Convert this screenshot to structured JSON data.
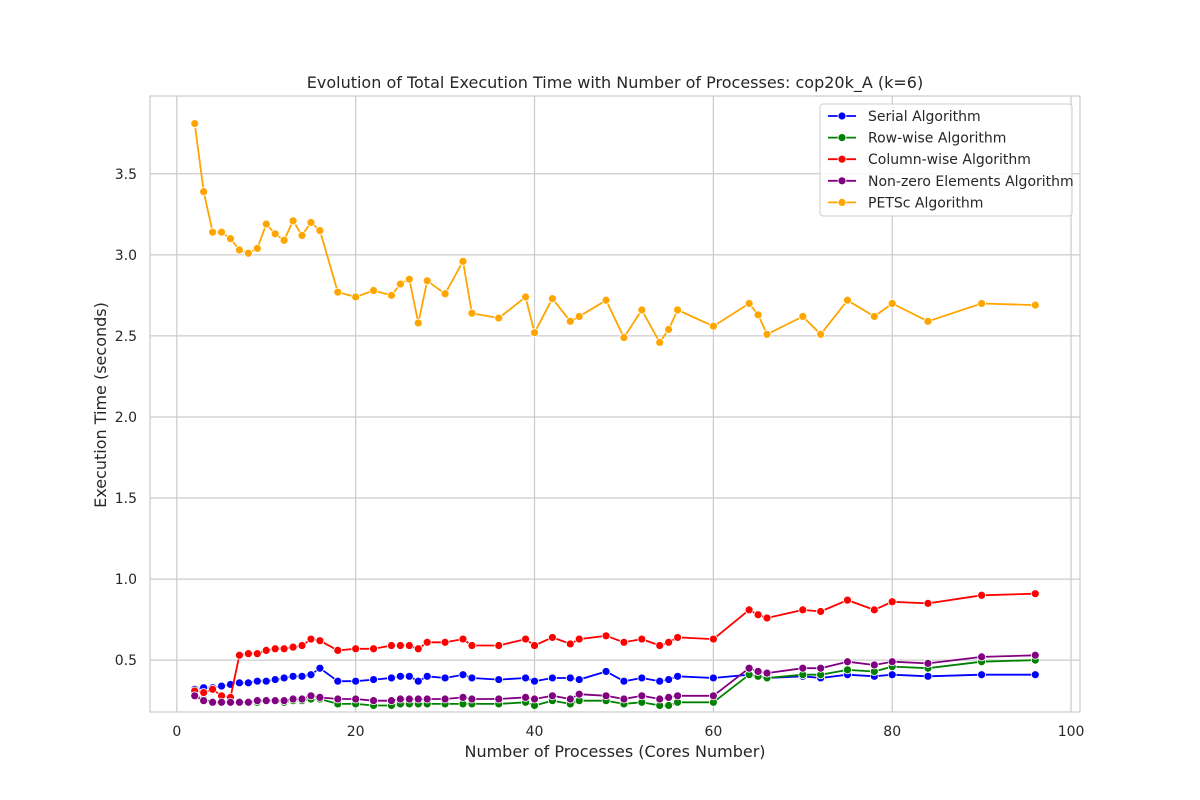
{
  "chart_data": {
    "type": "line",
    "title": "Evolution of Total Execution Time with Number of Processes: cop20k_A (k=6)",
    "xlabel": "Number of Processes (Cores Number)",
    "ylabel": "Execution Time (seconds)",
    "xlim": [
      -3,
      101
    ],
    "ylim": [
      0.18,
      3.98
    ],
    "xticks": [
      0,
      20,
      40,
      60,
      80,
      100
    ],
    "yticks": [
      0.5,
      1.0,
      1.5,
      2.0,
      2.5,
      3.0,
      3.5
    ],
    "ytick_labels": [
      "0.5",
      "1.0",
      "1.5",
      "2.0",
      "2.5",
      "3.0",
      "3.5"
    ],
    "grid": true,
    "legend_position": "top-right",
    "series": [
      {
        "name": "Serial Algorithm",
        "color": "#0000ff",
        "x": [
          2,
          3,
          4,
          5,
          6,
          7,
          8,
          9,
          10,
          11,
          12,
          13,
          14,
          15,
          16,
          18,
          20,
          22,
          24,
          25,
          26,
          27,
          28,
          30,
          32,
          33,
          36,
          39,
          40,
          42,
          44,
          45,
          48,
          50,
          52,
          54,
          55,
          56,
          60,
          64,
          65,
          66,
          70,
          72,
          75,
          78,
          80,
          84,
          90,
          96
        ],
        "y": [
          0.32,
          0.33,
          0.33,
          0.34,
          0.35,
          0.36,
          0.36,
          0.37,
          0.37,
          0.38,
          0.39,
          0.4,
          0.4,
          0.41,
          0.45,
          0.37,
          0.37,
          0.38,
          0.39,
          0.4,
          0.4,
          0.37,
          0.4,
          0.39,
          0.41,
          0.39,
          0.38,
          0.39,
          0.37,
          0.39,
          0.39,
          0.38,
          0.43,
          0.37,
          0.39,
          0.37,
          0.38,
          0.4,
          0.39,
          0.41,
          0.4,
          0.39,
          0.4,
          0.39,
          0.41,
          0.4,
          0.41,
          0.4,
          0.41,
          0.41
        ]
      },
      {
        "name": "Row-wise Algorithm",
        "color": "#008000",
        "x": [
          2,
          3,
          4,
          5,
          6,
          7,
          8,
          9,
          10,
          11,
          12,
          13,
          14,
          15,
          16,
          18,
          20,
          22,
          24,
          25,
          26,
          27,
          28,
          30,
          32,
          33,
          36,
          39,
          40,
          42,
          44,
          45,
          48,
          50,
          52,
          54,
          55,
          56,
          60,
          64,
          65,
          66,
          70,
          72,
          75,
          78,
          80,
          84,
          90,
          96
        ],
        "y": [
          0.28,
          0.26,
          0.24,
          0.24,
          0.24,
          0.24,
          0.24,
          0.24,
          0.25,
          0.25,
          0.24,
          0.25,
          0.25,
          0.26,
          0.26,
          0.23,
          0.23,
          0.22,
          0.22,
          0.23,
          0.23,
          0.23,
          0.23,
          0.23,
          0.23,
          0.23,
          0.23,
          0.24,
          0.22,
          0.25,
          0.23,
          0.25,
          0.25,
          0.23,
          0.24,
          0.22,
          0.22,
          0.24,
          0.24,
          0.41,
          0.4,
          0.39,
          0.41,
          0.41,
          0.44,
          0.43,
          0.46,
          0.45,
          0.49,
          0.5
        ]
      },
      {
        "name": "Column-wise Algorithm",
        "color": "#ff0000",
        "x": [
          2,
          3,
          4,
          5,
          6,
          7,
          8,
          9,
          10,
          11,
          12,
          13,
          14,
          15,
          16,
          18,
          20,
          22,
          24,
          25,
          26,
          27,
          28,
          30,
          32,
          33,
          36,
          39,
          40,
          42,
          44,
          45,
          48,
          50,
          52,
          54,
          55,
          56,
          60,
          64,
          65,
          66,
          70,
          72,
          75,
          78,
          80,
          84,
          90,
          96
        ],
        "y": [
          0.31,
          0.3,
          0.32,
          0.28,
          0.27,
          0.53,
          0.54,
          0.54,
          0.56,
          0.57,
          0.57,
          0.58,
          0.59,
          0.63,
          0.62,
          0.56,
          0.57,
          0.57,
          0.59,
          0.59,
          0.59,
          0.57,
          0.61,
          0.61,
          0.63,
          0.59,
          0.59,
          0.63,
          0.59,
          0.64,
          0.6,
          0.63,
          0.65,
          0.61,
          0.63,
          0.59,
          0.61,
          0.64,
          0.63,
          0.81,
          0.78,
          0.76,
          0.81,
          0.8,
          0.87,
          0.81,
          0.86,
          0.85,
          0.9,
          0.91
        ]
      },
      {
        "name": "Non-zero Elements Algorithm",
        "color": "#800080",
        "x": [
          2,
          3,
          4,
          5,
          6,
          7,
          8,
          9,
          10,
          11,
          12,
          13,
          14,
          15,
          16,
          18,
          20,
          22,
          24,
          25,
          26,
          27,
          28,
          30,
          32,
          33,
          36,
          39,
          40,
          42,
          44,
          45,
          48,
          50,
          52,
          54,
          55,
          56,
          60,
          64,
          65,
          66,
          70,
          72,
          75,
          78,
          80,
          84,
          90,
          96
        ],
        "y": [
          0.28,
          0.25,
          0.24,
          0.24,
          0.24,
          0.24,
          0.24,
          0.25,
          0.25,
          0.25,
          0.25,
          0.26,
          0.26,
          0.28,
          0.27,
          0.26,
          0.26,
          0.25,
          0.25,
          0.26,
          0.26,
          0.26,
          0.26,
          0.26,
          0.27,
          0.26,
          0.26,
          0.27,
          0.26,
          0.28,
          0.26,
          0.29,
          0.28,
          0.26,
          0.28,
          0.26,
          0.27,
          0.28,
          0.28,
          0.45,
          0.43,
          0.42,
          0.45,
          0.45,
          0.49,
          0.47,
          0.49,
          0.48,
          0.52,
          0.53
        ]
      },
      {
        "name": "PETSc Algorithm",
        "color": "#ffa500",
        "x": [
          2,
          3,
          4,
          5,
          6,
          7,
          8,
          9,
          10,
          11,
          12,
          13,
          14,
          15,
          16,
          18,
          20,
          22,
          24,
          25,
          26,
          27,
          28,
          30,
          32,
          33,
          36,
          39,
          40,
          42,
          44,
          45,
          48,
          50,
          52,
          54,
          55,
          56,
          60,
          64,
          65,
          66,
          70,
          72,
          75,
          78,
          80,
          84,
          90,
          96
        ],
        "y": [
          3.81,
          3.39,
          3.14,
          3.14,
          3.1,
          3.03,
          3.01,
          3.04,
          3.19,
          3.13,
          3.09,
          3.21,
          3.12,
          3.2,
          3.15,
          2.77,
          2.74,
          2.78,
          2.75,
          2.82,
          2.85,
          2.58,
          2.84,
          2.76,
          2.96,
          2.64,
          2.61,
          2.74,
          2.52,
          2.73,
          2.59,
          2.62,
          2.72,
          2.49,
          2.66,
          2.46,
          2.54,
          2.66,
          2.56,
          2.7,
          2.63,
          2.51,
          2.62,
          2.51,
          2.72,
          2.62,
          2.7,
          2.59,
          2.7,
          2.69
        ]
      }
    ]
  }
}
